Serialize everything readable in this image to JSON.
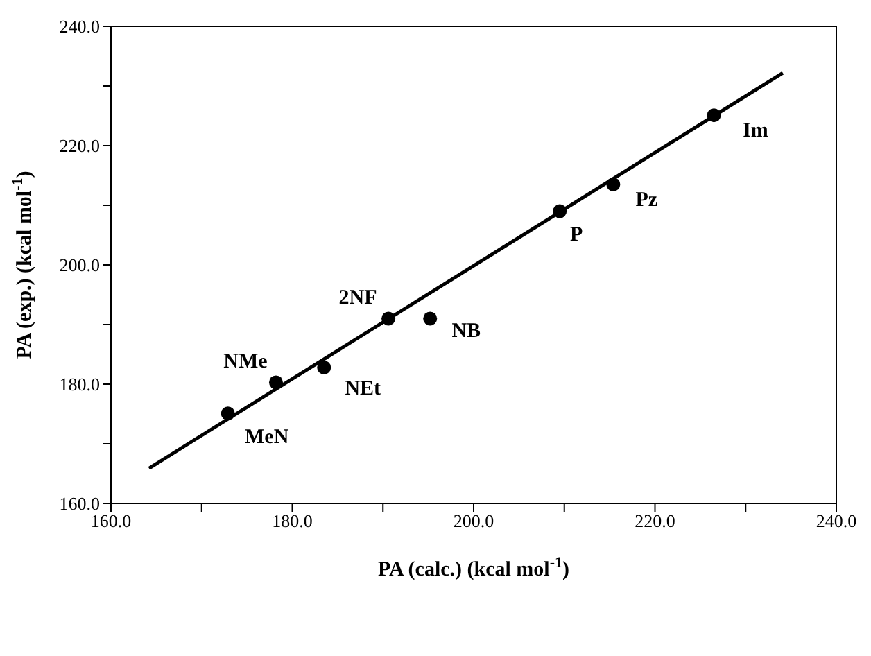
{
  "chart_data": {
    "type": "scatter",
    "xlabel": "PA (calc.) (kcal mol$^{-1}$)",
    "ylabel": "PA (exp.) (kcal mol$^{-1}$)",
    "series": [
      {
        "color": "#000000",
        "marker": "circle",
        "x": [
          172.9,
          178.2,
          183.5,
          190.6,
          195.2,
          209.5,
          215.4,
          226.5
        ],
        "values": [
          175.1,
          180.3,
          182.8,
          191.0,
          191.0,
          209.0,
          213.5,
          225.1
        ]
      },
      {
        "type": "line",
        "color": "#000000",
        "marker": "none",
        "line_style": "solid",
        "x": [
          164.2,
          234.1
        ],
        "values": [
          165.9,
          232.2
        ]
      }
    ],
    "annotations": [
      {
        "text": "MeN",
        "x": 172.9,
        "y": 175.1
      },
      {
        "text": "NMe",
        "x": 178.2,
        "y": 180.3
      },
      {
        "text": "NEt",
        "x": 183.5,
        "y": 182.8
      },
      {
        "text": "2NF",
        "x": 190.6,
        "y": 191.0
      },
      {
        "text": "NB",
        "x": 195.2,
        "y": 191.0
      },
      {
        "text": "P",
        "x": 209.5,
        "y": 209.0
      },
      {
        "text": "Pz",
        "x": 215.4,
        "y": 213.5
      },
      {
        "text": "Im",
        "x": 226.5,
        "y": 225.1
      }
    ],
    "xlim": [
      160,
      240
    ],
    "xticks": [
      {
        "value": 160,
        "label": "160.0"
      },
      {
        "value": 170,
        "label": null
      },
      {
        "value": 180,
        "label": "180.0"
      },
      {
        "value": 190,
        "label": null
      },
      {
        "value": 200,
        "label": "200.0"
      },
      {
        "value": 210,
        "label": null
      },
      {
        "value": 220,
        "label": "220.0"
      },
      {
        "value": 230,
        "label": null
      },
      {
        "value": 240,
        "label": "240.0"
      }
    ],
    "ylim": [
      160,
      240
    ],
    "yticks": [
      {
        "value": 160,
        "label": "160.0"
      },
      {
        "value": 170,
        "label": null
      },
      {
        "value": 180,
        "label": "180.0"
      },
      {
        "value": 190,
        "label": null
      },
      {
        "value": 200,
        "label": "200.0"
      },
      {
        "value": 210,
        "label": null
      },
      {
        "value": 220,
        "label": "220.0"
      },
      {
        "value": 230,
        "label": null
      },
      {
        "value": 240,
        "label": "240.0"
      }
    ],
    "legend": false
  }
}
